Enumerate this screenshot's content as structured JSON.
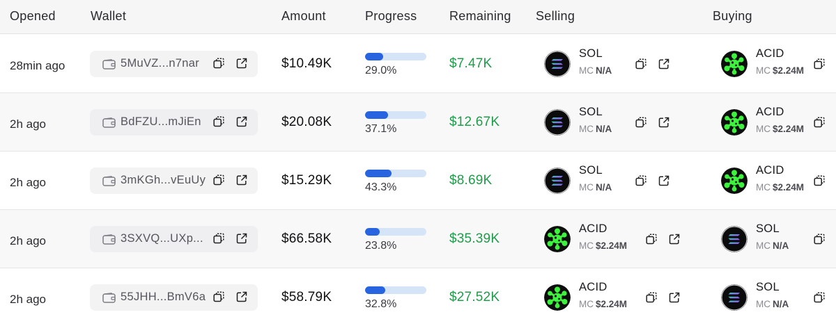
{
  "columns": {
    "opened": "Opened",
    "wallet": "Wallet",
    "amount": "Amount",
    "progress": "Progress",
    "remaining": "Remaining",
    "selling": "Selling",
    "buying": "Buying"
  },
  "colors": {
    "accent_blue": "#2864e0",
    "progress_track": "#d6e4f8",
    "remaining_green": "#1f9c4a",
    "acid_green": "#3cf23c"
  },
  "rows": [
    {
      "opened": "28min ago",
      "wallet": "5MuVZ...n7nar",
      "amount": "$10.49K",
      "progress": 29.0,
      "progress_label": "29.0%",
      "remaining": "$7.47K",
      "selling": {
        "symbol": "SOL",
        "mc_label": "MC",
        "mc": "N/A",
        "icon": "sol-logo-icon"
      },
      "buying": {
        "symbol": "ACID",
        "mc_label": "MC",
        "mc": "$2.24M",
        "icon": "acid-logo-icon"
      }
    },
    {
      "opened": "2h ago",
      "wallet": "BdFZU...mJiEn",
      "amount": "$20.08K",
      "progress": 37.1,
      "progress_label": "37.1%",
      "remaining": "$12.67K",
      "selling": {
        "symbol": "SOL",
        "mc_label": "MC",
        "mc": "N/A",
        "icon": "sol-logo-icon"
      },
      "buying": {
        "symbol": "ACID",
        "mc_label": "MC",
        "mc": "$2.24M",
        "icon": "acid-logo-icon"
      }
    },
    {
      "opened": "2h ago",
      "wallet": "3mKGh...vEuUy",
      "amount": "$15.29K",
      "progress": 43.3,
      "progress_label": "43.3%",
      "remaining": "$8.69K",
      "selling": {
        "symbol": "SOL",
        "mc_label": "MC",
        "mc": "N/A",
        "icon": "sol-logo-icon"
      },
      "buying": {
        "symbol": "ACID",
        "mc_label": "MC",
        "mc": "$2.24M",
        "icon": "acid-logo-icon"
      }
    },
    {
      "opened": "2h ago",
      "wallet": "3SXVQ...UXp...",
      "amount": "$66.58K",
      "progress": 23.8,
      "progress_label": "23.8%",
      "remaining": "$35.39K",
      "selling": {
        "symbol": "ACID",
        "mc_label": "MC",
        "mc": "$2.24M",
        "icon": "acid-logo-icon"
      },
      "buying": {
        "symbol": "SOL",
        "mc_label": "MC",
        "mc": "N/A",
        "icon": "sol-logo-icon"
      }
    },
    {
      "opened": "2h ago",
      "wallet": "55JHH...BmV6a",
      "amount": "$58.79K",
      "progress": 32.8,
      "progress_label": "32.8%",
      "remaining": "$27.52K",
      "selling": {
        "symbol": "ACID",
        "mc_label": "MC",
        "mc": "$2.24M",
        "icon": "acid-logo-icon"
      },
      "buying": {
        "symbol": "SOL",
        "mc_label": "MC",
        "mc": "N/A",
        "icon": "sol-logo-icon"
      }
    }
  ]
}
